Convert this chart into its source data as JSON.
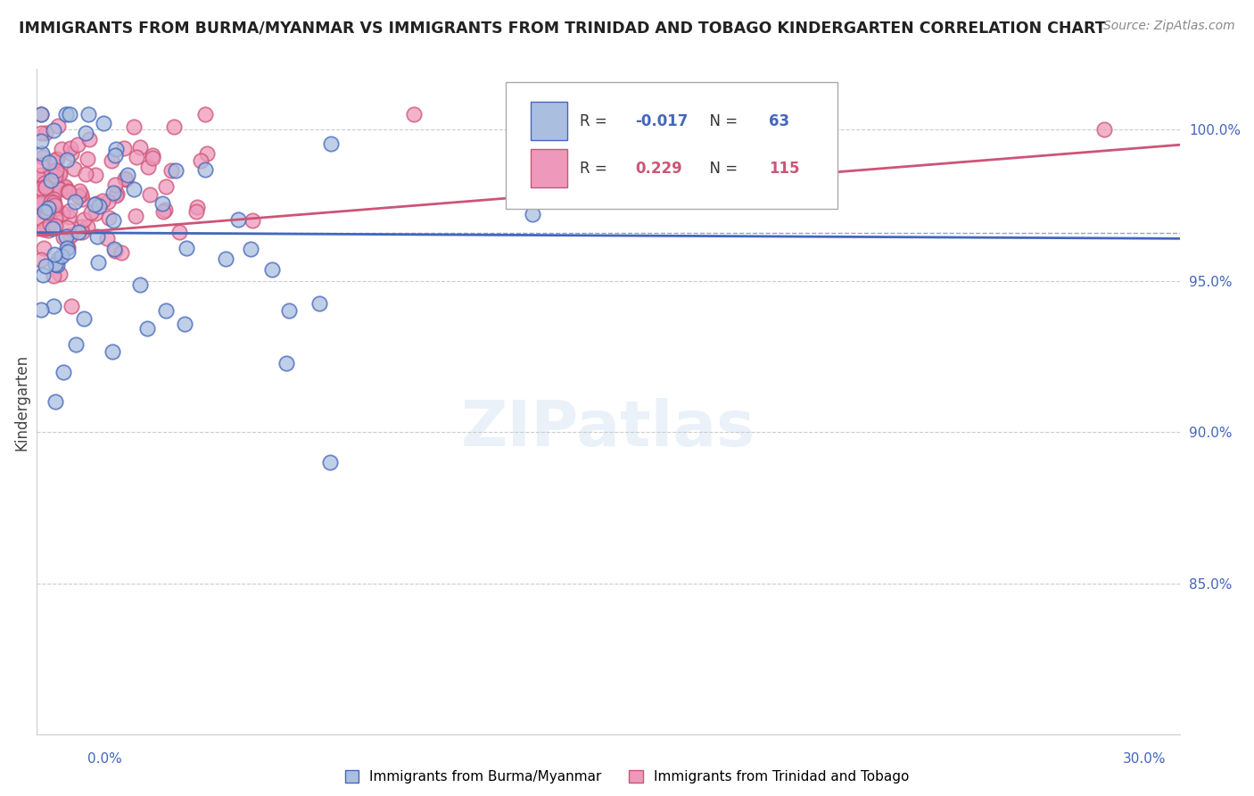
{
  "title": "IMMIGRANTS FROM BURMA/MYANMAR VS IMMIGRANTS FROM TRINIDAD AND TOBAGO KINDERGARTEN CORRELATION CHART",
  "source": "Source: ZipAtlas.com",
  "ylabel": "Kindergarten",
  "legend_blue_label": "Immigrants from Burma/Myanmar",
  "legend_pink_label": "Immigrants from Trinidad and Tobago",
  "legend_blue_R": "-0.017",
  "legend_blue_N": "63",
  "legend_pink_R": "0.229",
  "legend_pink_N": "115",
  "xlim": [
    0.0,
    0.3
  ],
  "ylim": [
    0.8,
    1.02
  ],
  "blue_color": "#AABFDF",
  "pink_color": "#EE99BB",
  "blue_line_color": "#4466BB",
  "pink_line_color": "#CC5577",
  "y_ticks": [
    1.0,
    0.95,
    0.9,
    0.85
  ],
  "y_tick_labels": [
    "100.0%",
    "95.0%",
    "90.0%",
    "85.0%"
  ],
  "x_tick_labels": [
    "0.0%",
    "30.0%"
  ],
  "blue_line_y": [
    0.966,
    0.964
  ],
  "pink_line_y": [
    0.965,
    0.995
  ],
  "watermark_text": "ZIPatlas"
}
